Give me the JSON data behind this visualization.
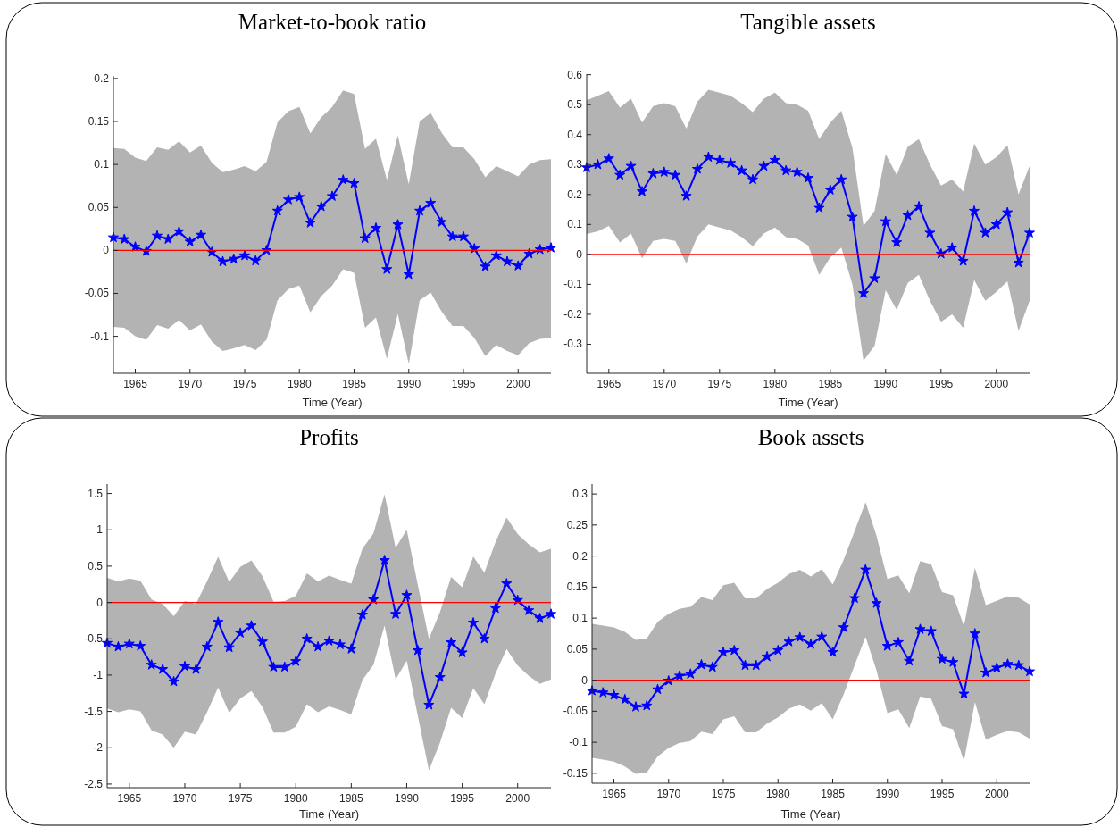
{
  "chart_data": [
    {
      "type": "line",
      "title": "Market-to-book ratio",
      "xlabel": "Time (Year)",
      "x": [
        1963,
        1964,
        1965,
        1966,
        1967,
        1968,
        1969,
        1970,
        1971,
        1972,
        1973,
        1974,
        1975,
        1976,
        1977,
        1978,
        1979,
        1980,
        1981,
        1982,
        1983,
        1984,
        1985,
        1986,
        1987,
        1988,
        1989,
        1990,
        1991,
        1992,
        1993,
        1994,
        1995,
        1996,
        1997,
        1998,
        1999,
        2000,
        2001,
        2002,
        2003
      ],
      "xlim": [
        1963,
        2003
      ],
      "xticks": [
        1965,
        1970,
        1975,
        1980,
        1985,
        1990,
        1995,
        2000
      ],
      "ylim": [
        -0.143,
        0.203
      ],
      "yticks": [
        -0.1,
        -0.05,
        0,
        0.05,
        0.1,
        0.15,
        0.2
      ],
      "marker": "star",
      "line_style": "solid",
      "grid": false,
      "ref_lines": [
        {
          "axis": "y",
          "value": 0,
          "color": "#ff0000"
        }
      ],
      "series": [
        {
          "color": "#0000ff",
          "values": [
            0.015,
            0.013,
            0.004,
            -0.001,
            0.017,
            0.013,
            0.022,
            0.01,
            0.018,
            -0.002,
            -0.013,
            -0.01,
            -0.006,
            -0.012,
            0.0,
            0.046,
            0.059,
            0.062,
            0.032,
            0.051,
            0.063,
            0.082,
            0.078,
            0.014,
            0.026,
            -0.022,
            0.03,
            -0.028,
            0.046,
            0.055,
            0.033,
            0.016,
            0.016,
            0.002,
            -0.019,
            -0.006,
            -0.013,
            -0.018,
            -0.004,
            0.001,
            0.003
          ],
          "upper": [
            0.119,
            0.118,
            0.108,
            0.104,
            0.12,
            0.117,
            0.127,
            0.114,
            0.122,
            0.102,
            0.091,
            0.094,
            0.098,
            0.092,
            0.103,
            0.149,
            0.162,
            0.167,
            0.136,
            0.155,
            0.167,
            0.186,
            0.182,
            0.118,
            0.13,
            0.082,
            0.134,
            0.077,
            0.15,
            0.16,
            0.137,
            0.12,
            0.12,
            0.106,
            0.085,
            0.098,
            0.092,
            0.086,
            0.1,
            0.105,
            0.106
          ],
          "lower": [
            -0.089,
            -0.09,
            -0.1,
            -0.104,
            -0.087,
            -0.091,
            -0.081,
            -0.093,
            -0.086,
            -0.106,
            -0.117,
            -0.114,
            -0.11,
            -0.116,
            -0.104,
            -0.058,
            -0.045,
            -0.041,
            -0.072,
            -0.053,
            -0.041,
            -0.022,
            -0.026,
            -0.09,
            -0.078,
            -0.126,
            -0.074,
            -0.132,
            -0.058,
            -0.049,
            -0.071,
            -0.088,
            -0.088,
            -0.102,
            -0.123,
            -0.11,
            -0.117,
            -0.122,
            -0.108,
            -0.103,
            -0.102
          ]
        }
      ]
    },
    {
      "type": "line",
      "title": "Tangible assets",
      "xlabel": "Time (Year)",
      "x": [
        1963,
        1964,
        1965,
        1966,
        1967,
        1968,
        1969,
        1970,
        1971,
        1972,
        1973,
        1974,
        1975,
        1976,
        1977,
        1978,
        1979,
        1980,
        1981,
        1982,
        1983,
        1984,
        1985,
        1986,
        1987,
        1988,
        1989,
        1990,
        1991,
        1992,
        1993,
        1994,
        1995,
        1996,
        1997,
        1998,
        1999,
        2000,
        2001,
        2002,
        2003
      ],
      "xlim": [
        1963,
        2003
      ],
      "xticks": [
        1965,
        1970,
        1975,
        1980,
        1985,
        1990,
        1995,
        2000
      ],
      "ylim": [
        -0.397,
        0.602
      ],
      "yticks": [
        -0.3,
        -0.2,
        -0.1,
        0,
        0.1,
        0.2,
        0.3,
        0.4,
        0.5,
        0.6
      ],
      "marker": "star",
      "line_style": "solid",
      "grid": false,
      "ref_lines": [
        {
          "axis": "y",
          "value": 0,
          "color": "#ff0000"
        }
      ],
      "series": [
        {
          "color": "#0000ff",
          "values": [
            0.29,
            0.3,
            0.32,
            0.265,
            0.295,
            0.21,
            0.27,
            0.275,
            0.265,
            0.195,
            0.285,
            0.325,
            0.315,
            0.305,
            0.28,
            0.25,
            0.295,
            0.315,
            0.28,
            0.275,
            0.255,
            0.155,
            0.215,
            0.25,
            0.125,
            -0.13,
            -0.08,
            0.11,
            0.04,
            0.13,
            0.16,
            0.072,
            0.002,
            0.022,
            -0.022,
            0.145,
            0.072,
            0.1,
            0.14,
            -0.028,
            0.072
          ],
          "upper": [
            0.515,
            0.53,
            0.545,
            0.49,
            0.52,
            0.44,
            0.495,
            0.505,
            0.495,
            0.42,
            0.51,
            0.55,
            0.54,
            0.53,
            0.505,
            0.475,
            0.52,
            0.54,
            0.505,
            0.5,
            0.48,
            0.385,
            0.44,
            0.48,
            0.355,
            0.095,
            0.145,
            0.335,
            0.265,
            0.36,
            0.385,
            0.3,
            0.23,
            0.25,
            0.21,
            0.37,
            0.3,
            0.325,
            0.365,
            0.2,
            0.295
          ],
          "lower": [
            0.068,
            0.077,
            0.095,
            0.04,
            0.07,
            -0.013,
            0.045,
            0.052,
            0.045,
            -0.03,
            0.06,
            0.1,
            0.09,
            0.08,
            0.058,
            0.027,
            0.07,
            0.09,
            0.058,
            0.052,
            0.03,
            -0.068,
            -0.01,
            0.023,
            -0.1,
            -0.355,
            -0.305,
            -0.12,
            -0.185,
            -0.095,
            -0.068,
            -0.155,
            -0.225,
            -0.2,
            -0.245,
            -0.085,
            -0.155,
            -0.125,
            -0.09,
            -0.255,
            -0.155
          ]
        }
      ]
    },
    {
      "type": "line",
      "title": "Profits",
      "xlabel": "Time (Year)",
      "x": [
        1963,
        1964,
        1965,
        1966,
        1967,
        1968,
        1969,
        1970,
        1971,
        1972,
        1973,
        1974,
        1975,
        1976,
        1977,
        1978,
        1979,
        1980,
        1981,
        1982,
        1983,
        1984,
        1985,
        1986,
        1987,
        1988,
        1989,
        1990,
        1991,
        1992,
        1993,
        1994,
        1995,
        1996,
        1997,
        1998,
        1999,
        2000,
        2001,
        2002,
        2003
      ],
      "xlim": [
        1963,
        2003
      ],
      "xticks": [
        1965,
        1970,
        1975,
        1980,
        1985,
        1990,
        1995,
        2000
      ],
      "ylim": [
        -2.55,
        1.63
      ],
      "yticks": [
        -2.5,
        -2,
        -1.5,
        -1,
        -0.5,
        0,
        0.5,
        1,
        1.5
      ],
      "marker": "star",
      "line_style": "solid",
      "grid": false,
      "ref_lines": [
        {
          "axis": "y",
          "value": 0,
          "color": "#ff0000"
        }
      ],
      "series": [
        {
          "color": "#0000ff",
          "values": [
            -0.56,
            -0.61,
            -0.57,
            -0.6,
            -0.86,
            -0.92,
            -1.09,
            -0.88,
            -0.92,
            -0.61,
            -0.27,
            -0.62,
            -0.42,
            -0.32,
            -0.54,
            -0.89,
            -0.89,
            -0.81,
            -0.5,
            -0.61,
            -0.53,
            -0.58,
            -0.64,
            -0.17,
            0.04,
            0.58,
            -0.16,
            0.1,
            -0.66,
            -1.41,
            -1.03,
            -0.55,
            -0.69,
            -0.28,
            -0.5,
            -0.08,
            0.26,
            0.03,
            -0.11,
            -0.22,
            -0.16
          ],
          "upper": [
            0.34,
            0.29,
            0.33,
            0.3,
            0.04,
            -0.02,
            -0.19,
            0.02,
            -0.02,
            0.29,
            0.63,
            0.28,
            0.49,
            0.58,
            0.36,
            0.01,
            0.02,
            0.09,
            0.4,
            0.29,
            0.37,
            0.31,
            0.26,
            0.74,
            0.95,
            1.49,
            0.75,
            1.0,
            0.24,
            -0.5,
            -0.13,
            0.35,
            0.21,
            0.63,
            0.41,
            0.83,
            1.17,
            0.94,
            0.8,
            0.69,
            0.74
          ],
          "lower": [
            -1.46,
            -1.51,
            -1.47,
            -1.5,
            -1.76,
            -1.82,
            -2.0,
            -1.78,
            -1.82,
            -1.51,
            -1.17,
            -1.52,
            -1.32,
            -1.22,
            -1.44,
            -1.79,
            -1.79,
            -1.71,
            -1.4,
            -1.51,
            -1.43,
            -1.48,
            -1.54,
            -1.07,
            -0.86,
            -0.32,
            -1.06,
            -0.8,
            -1.56,
            -2.31,
            -1.93,
            -1.45,
            -1.59,
            -1.18,
            -1.4,
            -0.98,
            -0.64,
            -0.87,
            -1.01,
            -1.12,
            -1.06
          ]
        }
      ]
    },
    {
      "type": "line",
      "title": "Book assets",
      "xlabel": "Time (Year)",
      "x": [
        1963,
        1964,
        1965,
        1966,
        1967,
        1968,
        1969,
        1970,
        1971,
        1972,
        1973,
        1974,
        1975,
        1976,
        1977,
        1978,
        1979,
        1980,
        1981,
        1982,
        1983,
        1984,
        1985,
        1986,
        1987,
        1988,
        1989,
        1990,
        1991,
        1992,
        1993,
        1994,
        1995,
        1996,
        1997,
        1998,
        1999,
        2000,
        2001,
        2002,
        2003
      ],
      "xlim": [
        1963,
        2003
      ],
      "xticks": [
        1965,
        1970,
        1975,
        1980,
        1985,
        1990,
        1995,
        2000
      ],
      "ylim": [
        -0.166,
        0.316
      ],
      "yticks": [
        -0.15,
        -0.1,
        -0.05,
        0,
        0.05,
        0.1,
        0.15,
        0.2,
        0.25,
        0.3
      ],
      "marker": "star",
      "line_style": "solid",
      "grid": false,
      "ref_lines": [
        {
          "axis": "y",
          "value": 0,
          "color": "#ff0000"
        }
      ],
      "series": [
        {
          "color": "#0000ff",
          "values": [
            -0.017,
            -0.02,
            -0.024,
            -0.031,
            -0.043,
            -0.041,
            -0.015,
            -0.001,
            0.007,
            0.01,
            0.025,
            0.021,
            0.045,
            0.048,
            0.024,
            0.024,
            0.038,
            0.048,
            0.062,
            0.069,
            0.058,
            0.07,
            0.045,
            0.085,
            0.132,
            0.178,
            0.124,
            0.055,
            0.061,
            0.031,
            0.082,
            0.079,
            0.034,
            0.029,
            -0.022,
            0.075,
            0.012,
            0.02,
            0.026,
            0.024,
            0.014
          ],
          "upper": [
            0.091,
            0.088,
            0.085,
            0.078,
            0.065,
            0.067,
            0.094,
            0.107,
            0.115,
            0.118,
            0.134,
            0.129,
            0.153,
            0.157,
            0.132,
            0.132,
            0.147,
            0.157,
            0.171,
            0.178,
            0.167,
            0.179,
            0.154,
            0.194,
            0.24,
            0.287,
            0.233,
            0.163,
            0.169,
            0.14,
            0.192,
            0.187,
            0.142,
            0.137,
            0.087,
            0.181,
            0.121,
            0.128,
            0.135,
            0.133,
            0.122
          ],
          "lower": [
            -0.125,
            -0.128,
            -0.131,
            -0.139,
            -0.151,
            -0.149,
            -0.123,
            -0.109,
            -0.101,
            -0.098,
            -0.083,
            -0.087,
            -0.063,
            -0.058,
            -0.084,
            -0.084,
            -0.07,
            -0.06,
            -0.046,
            -0.039,
            -0.049,
            -0.037,
            -0.063,
            -0.023,
            0.024,
            0.07,
            0.016,
            -0.053,
            -0.047,
            -0.077,
            -0.026,
            -0.03,
            -0.074,
            -0.079,
            -0.13,
            -0.035,
            -0.096,
            -0.088,
            -0.082,
            -0.084,
            -0.094
          ]
        }
      ]
    }
  ]
}
